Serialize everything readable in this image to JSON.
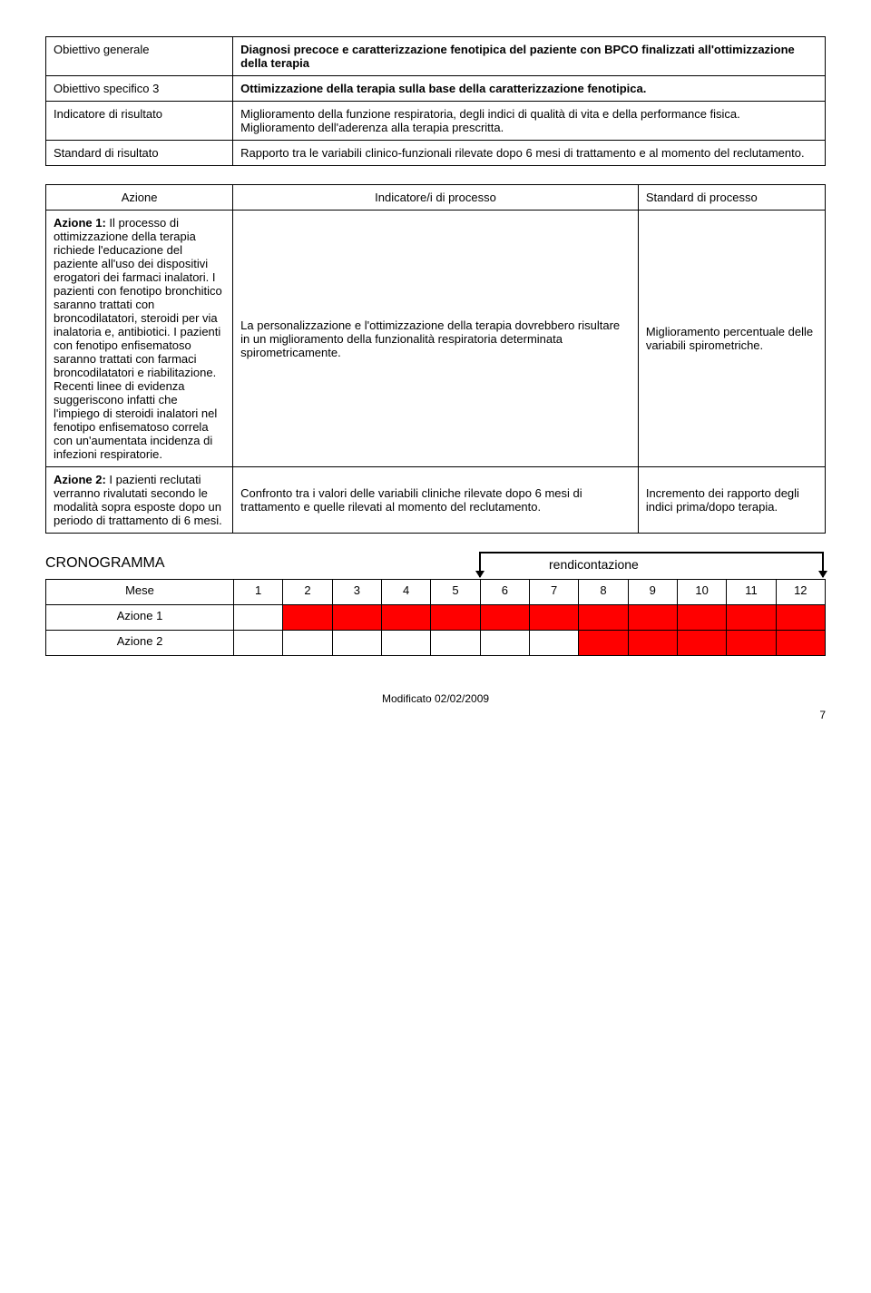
{
  "header_table": {
    "rows": [
      {
        "label": "Obiettivo generale",
        "label_bold": false,
        "value": "Diagnosi precoce e caratterizzazione fenotipica del paziente con BPCO finalizzati all'ottimizzazione della terapia",
        "value_bold": true
      },
      {
        "label": "Obiettivo specifico 3",
        "label_bold": false,
        "value": "Ottimizzazione della terapia sulla base della caratterizzazione fenotipica.",
        "value_bold": true
      },
      {
        "label": "Indicatore di risultato",
        "label_bold": false,
        "value": "Miglioramento della funzione respiratoria, degli indici di qualità di vita e della performance fisica. Miglioramento dell'aderenza alla terapia prescritta.",
        "value_bold": false
      },
      {
        "label": "Standard di risultato",
        "label_bold": false,
        "value": "Rapporto tra le variabili clinico-funzionali rilevate dopo 6 mesi di trattamento e al momento del reclutamento.",
        "value_bold": false
      }
    ]
  },
  "action_table": {
    "headers": {
      "c0": "Azione",
      "c1": "Indicatore/i di processo",
      "c2": "Standard di processo"
    },
    "rows": [
      {
        "c0_prefix": "Azione 1: ",
        "c0_body": "Il processo di ottimizzazione della terapia richiede l'educazione del paziente all'uso dei dispositivi erogatori dei farmaci inalatori. I pazienti con fenotipo bronchitico saranno trattati con broncodilatatori, steroidi per via inalatoria e, antibiotici. I pazienti con fenotipo enfisematoso saranno trattati con farmaci broncodilatatori e riabilitazione. Recenti linee di evidenza suggeriscono infatti che l'impiego di steroidi inalatori nel fenotipo enfisematoso correla con un'aumentata incidenza di infezioni respiratorie.",
        "c1": "La personalizzazione e l'ottimizzazione della terapia dovrebbero risultare in un miglioramento della funzionalità respiratoria determinata spirometricamente.",
        "c2": "Miglioramento percentuale delle variabili spirometriche."
      },
      {
        "c0_prefix": "Azione 2: ",
        "c0_body": "I pazienti reclutati verranno rivalutati secondo le modalità sopra esposte dopo un periodo di trattamento di 6 mesi.",
        "c1": "Confronto tra i valori delle variabili cliniche rilevate dopo 6 mesi di trattamento e quelle rilevati al momento del reclutamento.",
        "c2": "Incremento dei rapporto degli indici prima/dopo terapia."
      }
    ]
  },
  "crono": {
    "title": "CRONOGRAMMA",
    "rendi": "rendicontazione",
    "month_label": "Mese",
    "months": [
      "1",
      "2",
      "3",
      "4",
      "5",
      "6",
      "7",
      "8",
      "9",
      "10",
      "11",
      "12"
    ],
    "rows": [
      {
        "label": "Azione 1",
        "fills": [
          false,
          true,
          true,
          true,
          true,
          true,
          true,
          true,
          true,
          true,
          true,
          true
        ]
      },
      {
        "label": "Azione 2",
        "fills": [
          false,
          false,
          false,
          false,
          false,
          false,
          false,
          true,
          true,
          true,
          true,
          true
        ]
      }
    ],
    "colors": {
      "red": "#ff0000",
      "line": "#000000"
    }
  },
  "footer": {
    "modified": "Modificato 02/02/2009",
    "page": "7"
  }
}
